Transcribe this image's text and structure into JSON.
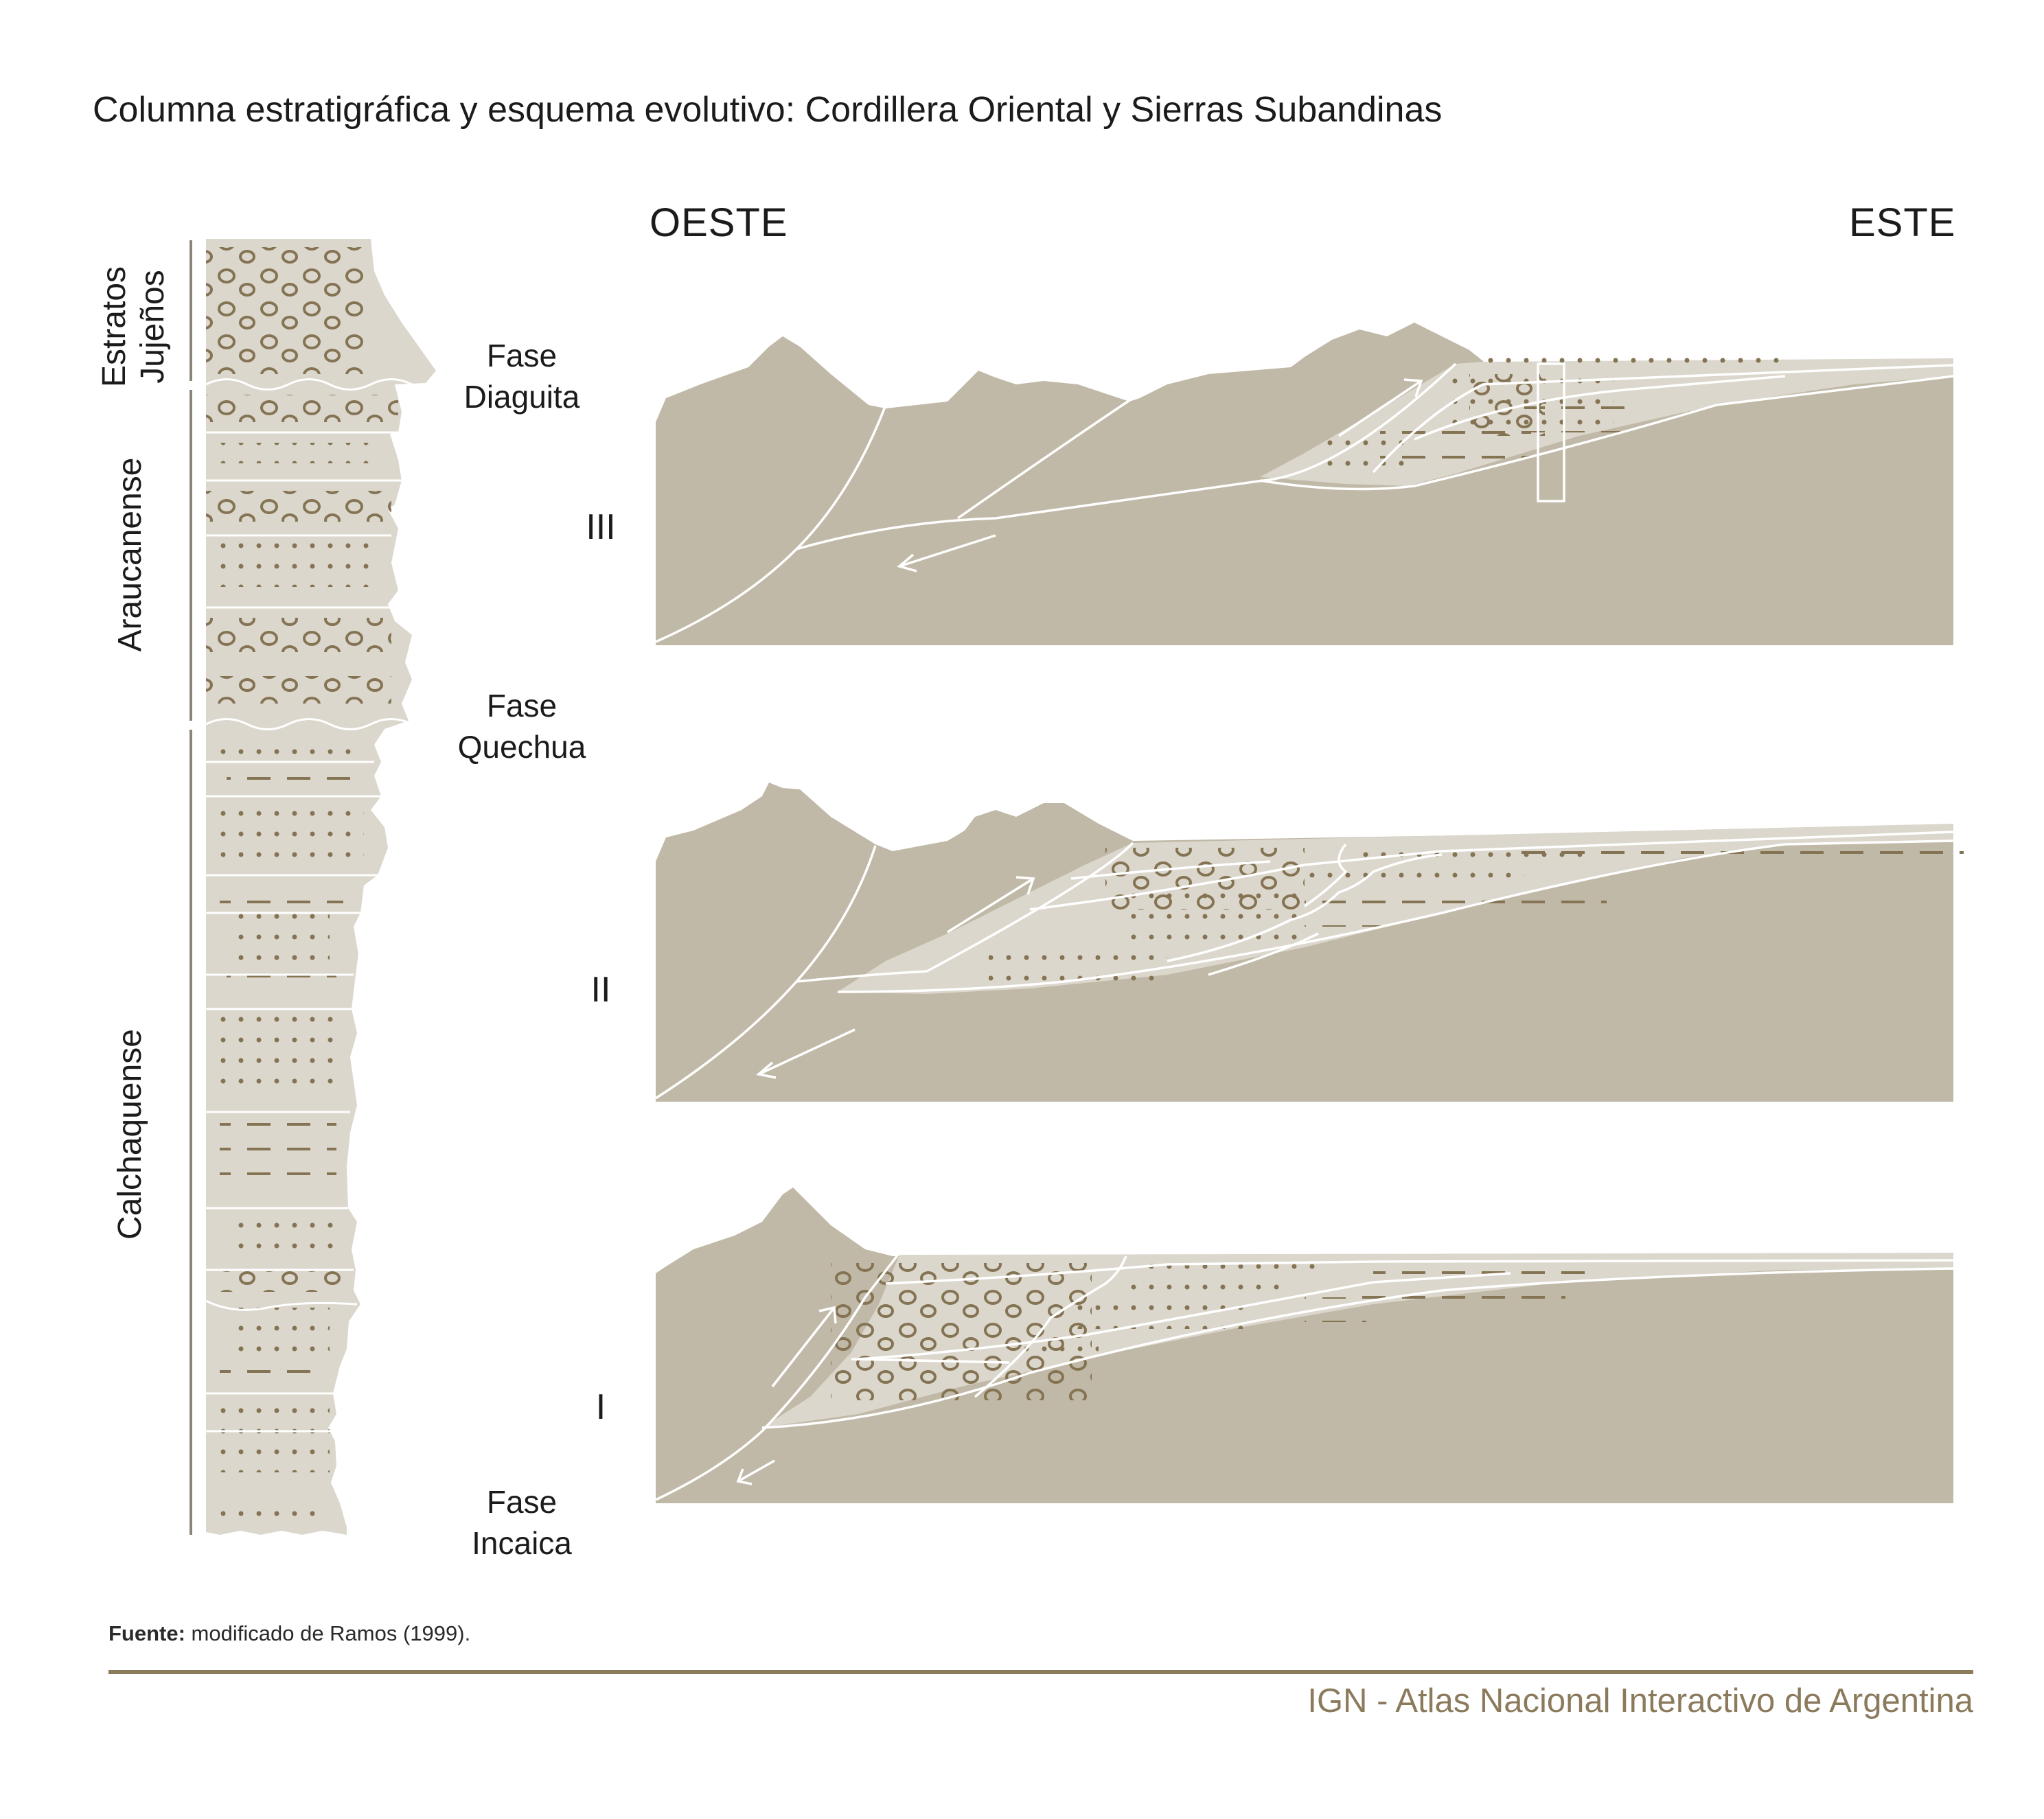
{
  "title": "Columna estratigráfica y esquema evolutivo: Cordillera Oriental y Sierras Subandinas",
  "directions": {
    "west": "OESTE",
    "east": "ESTE"
  },
  "column_units": [
    {
      "name": "Estratos Jujeños"
    },
    {
      "name": "Araucanense"
    },
    {
      "name": "Calchaquense"
    }
  ],
  "phases": [
    {
      "line1": "Fase",
      "line2": "Diaguita"
    },
    {
      "line1": "Fase",
      "line2": "Quechua"
    },
    {
      "line1": "Fase",
      "line2": "Incaica"
    }
  ],
  "stages": [
    "III",
    "II",
    "I"
  ],
  "source": {
    "label": "Fuente:",
    "text": " modificado de Ramos (1999)."
  },
  "credit": "IGN - Atlas Nacional Interactivo de Argentina",
  "colors": {
    "bedrock": "#c1b9a7",
    "sediment": "#dcd7cd",
    "symbol": "#857453",
    "line": "#ffffff",
    "accent": "#8b7b5c"
  }
}
